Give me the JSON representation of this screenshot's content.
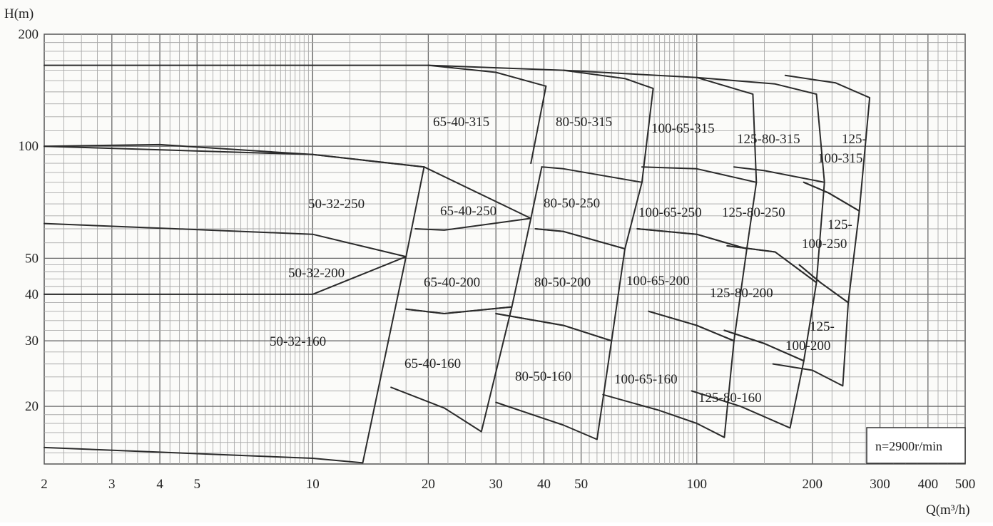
{
  "chart_data": {
    "type": "line",
    "title": "",
    "xlabel": "Q(m³/h)",
    "ylabel": "H(m)",
    "x_scale": "log",
    "y_scale": "log",
    "xlim": [
      2,
      500
    ],
    "ylim": [
      14,
      200
    ],
    "grid": true,
    "x_ticks": [
      2,
      3,
      4,
      5,
      10,
      20,
      30,
      40,
      50,
      100,
      200,
      300,
      400,
      500
    ],
    "x_tick_labels": [
      "2",
      "3",
      "4",
      "5",
      "10",
      "20",
      "30",
      "40",
      "50",
      "100",
      "200",
      "300",
      "400",
      "500"
    ],
    "y_ticks": [
      20,
      30,
      40,
      50,
      100,
      200
    ],
    "y_tick_labels": [
      "20",
      "30",
      "40",
      "50",
      "100",
      "200"
    ],
    "annotation": "n=2900r/min",
    "regions": [
      {
        "label": "50-32-160",
        "outline": [
          [
            2,
            15.5
          ],
          [
            10,
            14.5
          ],
          [
            13.5,
            14.1
          ],
          [
            17.5,
            50.5
          ],
          [
            10,
            40
          ],
          [
            2,
            40
          ]
        ]
      },
      {
        "label": "50-32-200",
        "outline": [
          [
            2,
            62
          ],
          [
            10,
            58
          ],
          [
            17.5,
            50.5
          ],
          [
            19.5,
            88
          ],
          [
            10,
            95
          ],
          [
            2,
            100
          ]
        ]
      },
      {
        "label": "50-32-250",
        "outline": [
          [
            2,
            100
          ],
          [
            4,
            101
          ],
          [
            10,
            95
          ],
          [
            19.5,
            88
          ]
        ]
      },
      {
        "label": "65-40-160",
        "outline": [
          [
            16,
            22.5
          ],
          [
            22,
            19.8
          ],
          [
            27.5,
            17.1
          ],
          [
            33,
            37
          ],
          [
            22,
            35.5
          ],
          [
            17.5,
            36.5
          ]
        ]
      },
      {
        "label": "65-40-200",
        "outline": [
          [
            17.5,
            36.5
          ],
          [
            22,
            35.5
          ],
          [
            33,
            37
          ],
          [
            37,
            64
          ],
          [
            22,
            59.5
          ],
          [
            18.5,
            60
          ]
        ]
      },
      {
        "label": "65-40-250",
        "outline": [
          [
            19.5,
            88
          ],
          [
            37,
            64
          ],
          [
            39.5,
            88
          ]
        ]
      },
      {
        "label": "65-40-315",
        "outline": [
          [
            2,
            165
          ],
          [
            20,
            165
          ],
          [
            30,
            158
          ],
          [
            40.5,
            145
          ],
          [
            37,
            90
          ]
        ]
      },
      {
        "label": "80-50-160",
        "outline": [
          [
            30,
            20.5
          ],
          [
            45,
            17.8
          ],
          [
            55,
            16.3
          ],
          [
            60,
            30
          ],
          [
            45,
            33
          ],
          [
            30,
            35.5
          ]
        ]
      },
      {
        "label": "80-50-200",
        "outline": [
          [
            30,
            35.5
          ],
          [
            45,
            33
          ],
          [
            60,
            30
          ],
          [
            65,
            53
          ],
          [
            45,
            59
          ],
          [
            38,
            60
          ]
        ]
      },
      {
        "label": "80-50-250",
        "outline": [
          [
            38,
            60
          ],
          [
            45,
            59
          ],
          [
            65,
            53
          ],
          [
            72,
            80
          ],
          [
            45,
            87
          ],
          [
            39.5,
            88
          ]
        ]
      },
      {
        "label": "80-50-315",
        "outline": [
          [
            20,
            165
          ],
          [
            45,
            160
          ],
          [
            65,
            152
          ],
          [
            77,
            143
          ],
          [
            72,
            80
          ]
        ]
      },
      {
        "label": "100-65-160",
        "outline": [
          [
            57,
            21.5
          ],
          [
            80,
            19.5
          ],
          [
            100,
            18
          ],
          [
            118,
            16.5
          ],
          [
            125,
            30
          ],
          [
            100,
            33
          ],
          [
            75,
            36
          ]
        ]
      },
      {
        "label": "100-65-200",
        "outline": [
          [
            75,
            36
          ],
          [
            100,
            33
          ],
          [
            125,
            30
          ],
          [
            135,
            53
          ],
          [
            100,
            58
          ],
          [
            70,
            60
          ]
        ]
      },
      {
        "label": "100-65-250",
        "outline": [
          [
            70,
            60
          ],
          [
            100,
            58
          ],
          [
            135,
            53
          ],
          [
            143,
            80
          ],
          [
            100,
            87
          ],
          [
            72,
            88
          ]
        ]
      },
      {
        "label": "100-65-315",
        "outline": [
          [
            45,
            160
          ],
          [
            100,
            153
          ],
          [
            140,
            138
          ],
          [
            143,
            80
          ]
        ]
      },
      {
        "label": "125-80-160",
        "outline": [
          [
            97,
            22
          ],
          [
            130,
            20
          ],
          [
            175,
            17.5
          ],
          [
            190,
            26.5
          ],
          [
            150,
            29.5
          ],
          [
            118,
            32
          ]
        ]
      },
      {
        "label": "125-80-200",
        "outline": [
          [
            118,
            32
          ],
          [
            150,
            29.5
          ],
          [
            190,
            26.5
          ],
          [
            205,
            43
          ],
          [
            160,
            52
          ],
          [
            120,
            54
          ]
        ]
      },
      {
        "label": "125-80-250",
        "outline": [
          [
            120,
            54
          ],
          [
            160,
            52
          ],
          [
            205,
            43
          ],
          [
            215,
            80
          ],
          [
            150,
            86
          ],
          [
            125,
            88
          ]
        ]
      },
      {
        "label": "125-80-315",
        "outline": [
          [
            100,
            153
          ],
          [
            160,
            147
          ],
          [
            205,
            138
          ],
          [
            215,
            80
          ]
        ]
      },
      {
        "label": "125-100-200",
        "outline": [
          [
            158,
            26
          ],
          [
            200,
            25
          ],
          [
            240,
            22.7
          ],
          [
            248,
            38
          ],
          [
            210,
            43
          ],
          [
            185,
            48
          ]
        ]
      },
      {
        "label": "125-100-250",
        "outline": [
          [
            185,
            48
          ],
          [
            210,
            43
          ],
          [
            248,
            38
          ],
          [
            265,
            67
          ],
          [
            220,
            75
          ],
          [
            190,
            80
          ]
        ]
      },
      {
        "label": "125-100-315",
        "outline": [
          [
            190,
            80
          ],
          [
            220,
            75
          ],
          [
            265,
            67
          ],
          [
            282,
            135
          ],
          [
            230,
            148
          ],
          [
            170,
            155
          ]
        ]
      }
    ]
  },
  "labels": {
    "r1": "65-40-315",
    "r2": "80-50-315",
    "r3": "100-65-315",
    "r4": "125-80-315",
    "r5a": "125-",
    "r5b": "100-315",
    "r6": "50-32-250",
    "r7": "65-40-250",
    "r8": "80-50-250",
    "r9": "100-65-250",
    "r10": "125-80-250",
    "r11a": "125-",
    "r11b": "100-250",
    "r12": "50-32-200",
    "r13": "65-40-200",
    "r14": "80-50-200",
    "r15": "100-65-200",
    "r16": "125-80-200",
    "r17a": "125-",
    "r17b": "100-200",
    "r18": "50-32-160",
    "r19": "65-40-160",
    "r20": "80-50-160",
    "r21": "100-65-160",
    "r22": "125-80-160"
  }
}
